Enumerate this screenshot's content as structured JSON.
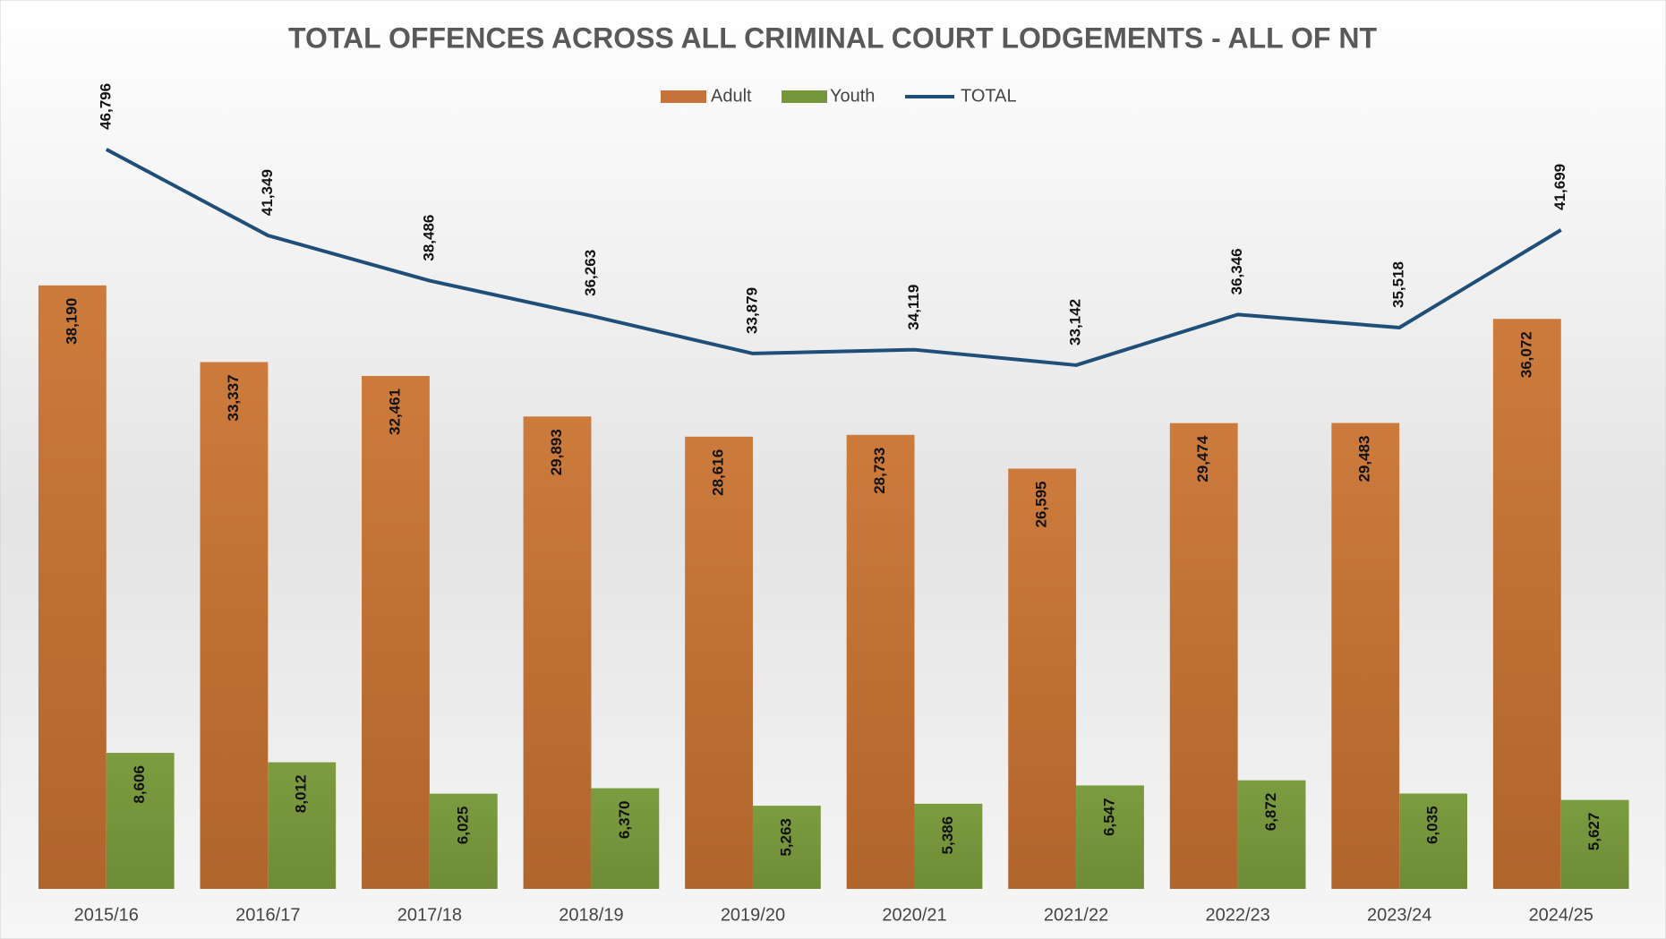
{
  "chart_data": {
    "type": "bar",
    "title": "TOTAL OFFENCES ACROSS ALL CRIMINAL COURT LODGEMENTS - ALL OF NT",
    "categories": [
      "2015/16",
      "2016/17",
      "2017/18",
      "2018/19",
      "2019/20",
      "2020/21",
      "2021/22",
      "2022/23",
      "2023/24",
      "2024/25"
    ],
    "series": [
      {
        "name": "Adult",
        "color": "#c5733a",
        "type": "bar",
        "values": [
          38190,
          33337,
          32461,
          29893,
          28616,
          28733,
          26595,
          29474,
          29483,
          36072
        ],
        "value_labels": [
          "38,190",
          "33,337",
          "32,461",
          "29,893",
          "28,616",
          "28,733",
          "26,595",
          "29,474",
          "29,483",
          "36,072"
        ]
      },
      {
        "name": "Youth",
        "color": "#76963c",
        "type": "bar",
        "values": [
          8606,
          8012,
          6025,
          6370,
          5263,
          5386,
          6547,
          6872,
          6035,
          5627
        ],
        "value_labels": [
          "8,606",
          "8,012",
          "6,025",
          "6,370",
          "5,263",
          "5,386",
          "6,547",
          "6,872",
          "6,035",
          "5,627"
        ]
      },
      {
        "name": "TOTAL",
        "color": "#1f4e79",
        "type": "line",
        "values": [
          46796,
          41349,
          38486,
          36263,
          33879,
          34119,
          33142,
          36346,
          35518,
          41699
        ],
        "value_labels": [
          "46,796",
          "41,349",
          "38,486",
          "36,263",
          "33,879",
          "34,119",
          "33,142",
          "36,346",
          "35,518",
          "41,699"
        ]
      }
    ],
    "ylim": [
      0,
      49000
    ],
    "legend": "top",
    "grid": false
  }
}
